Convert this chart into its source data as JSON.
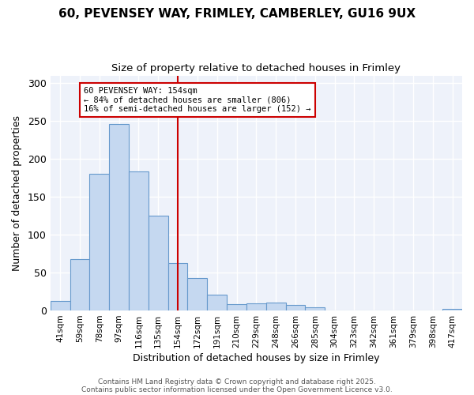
{
  "title_line1": "60, PEVENSEY WAY, FRIMLEY, CAMBERLEY, GU16 9UX",
  "title_line2": "Size of property relative to detached houses in Frimley",
  "xlabel": "Distribution of detached houses by size in Frimley",
  "ylabel": "Number of detached properties",
  "categories": [
    "41sqm",
    "59sqm",
    "78sqm",
    "97sqm",
    "116sqm",
    "135sqm",
    "154sqm",
    "172sqm",
    "191sqm",
    "210sqm",
    "229sqm",
    "248sqm",
    "266sqm",
    "285sqm",
    "304sqm",
    "323sqm",
    "342sqm",
    "361sqm",
    "379sqm",
    "398sqm",
    "417sqm"
  ],
  "values": [
    13,
    68,
    180,
    246,
    183,
    125,
    63,
    43,
    21,
    8,
    9,
    10,
    7,
    4,
    0,
    0,
    0,
    0,
    0,
    0,
    2
  ],
  "bar_color": "#c5d8f0",
  "bar_edge_color": "#6699cc",
  "vline_x_index": 6,
  "vline_color": "#cc0000",
  "annotation_text": "60 PEVENSEY WAY: 154sqm\n← 84% of detached houses are smaller (806)\n16% of semi-detached houses are larger (152) →",
  "annotation_box_color": "#ffffff",
  "annotation_box_edge": "#cc0000",
  "ylim": [
    0,
    310
  ],
  "yticks": [
    0,
    50,
    100,
    150,
    200,
    250,
    300
  ],
  "fig_bg_color": "#ffffff",
  "plot_bg_color": "#eef2fa",
  "grid_color": "#ffffff",
  "footnote1": "Contains HM Land Registry data © Crown copyright and database right 2025.",
  "footnote2": "Contains public sector information licensed under the Open Government Licence v3.0."
}
